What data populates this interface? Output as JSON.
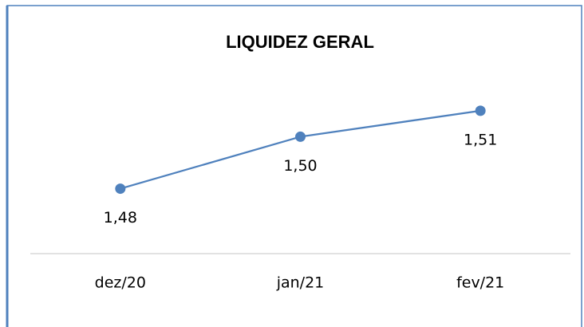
{
  "chart_data": {
    "type": "line",
    "title": "LIQUIDEZ GERAL",
    "categories": [
      "dez/20",
      "jan/21",
      "fev/21"
    ],
    "series": [
      {
        "name": "Liquidez Geral",
        "color": "#4f81bd",
        "values": [
          1.48,
          1.5,
          1.51
        ],
        "value_labels": [
          "1,48",
          "1,50",
          "1,51"
        ]
      }
    ],
    "ylim": [
      1.455,
      1.525
    ]
  }
}
